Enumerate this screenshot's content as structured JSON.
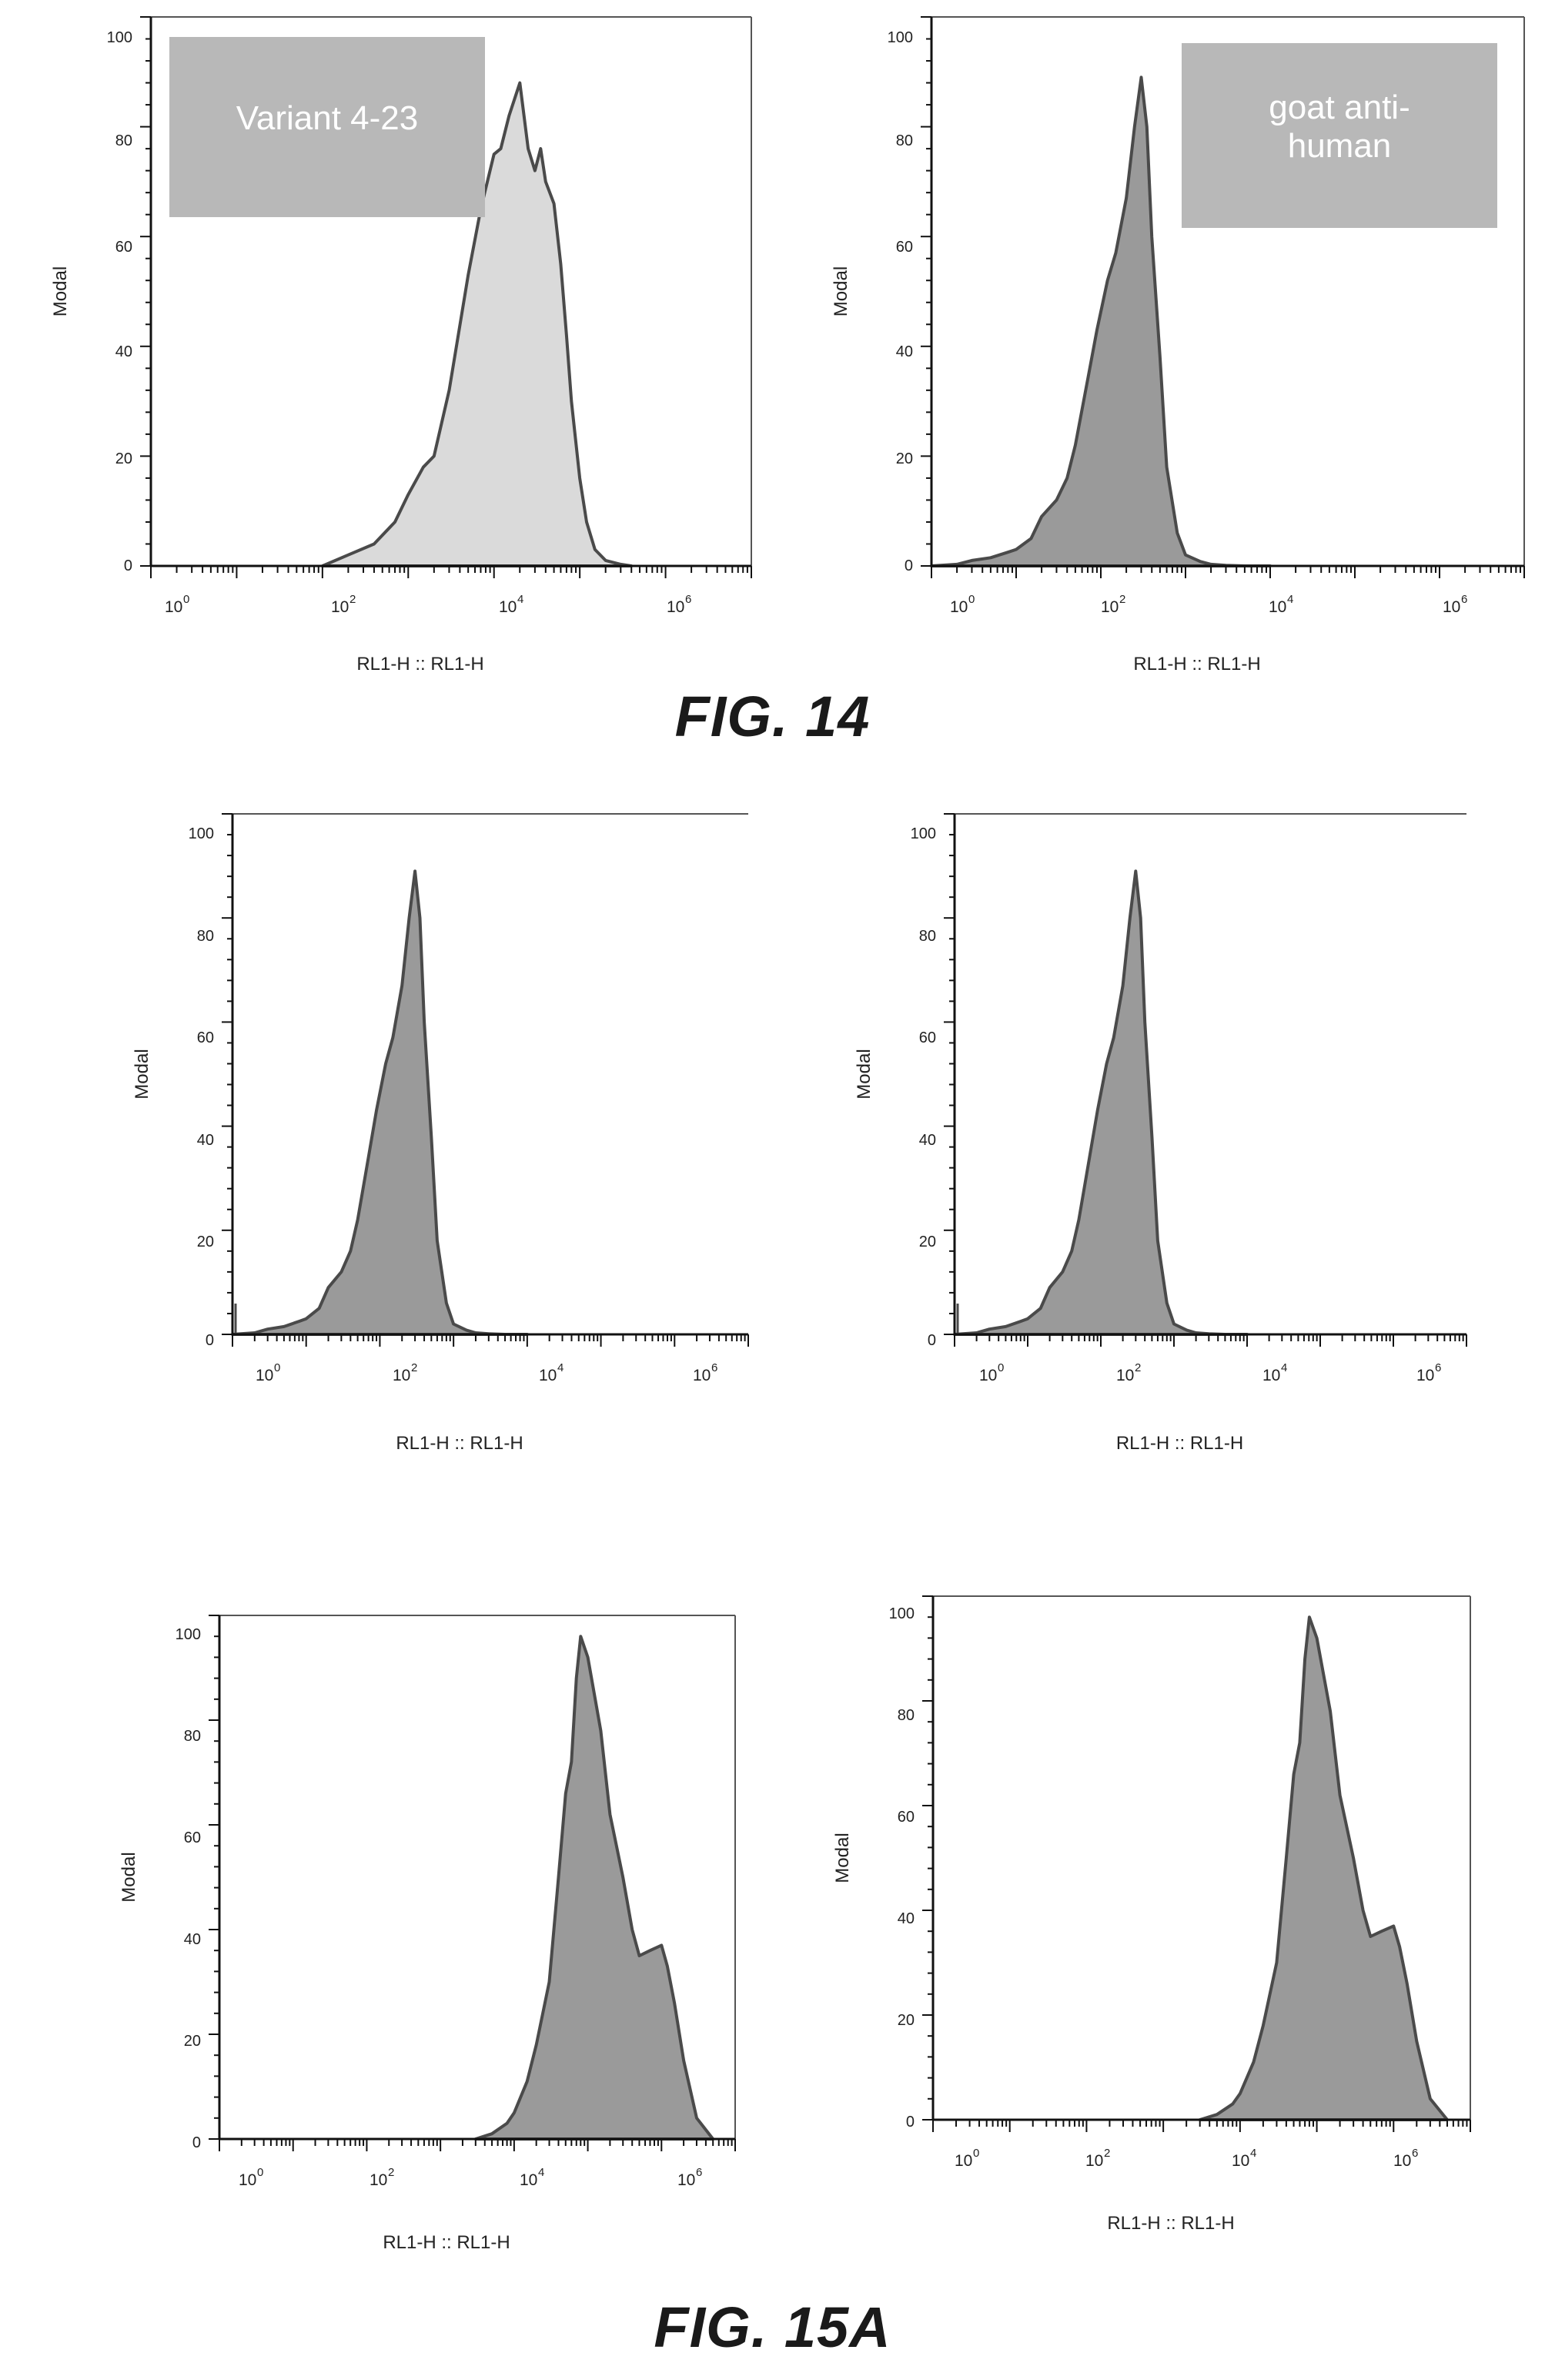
{
  "figures": [
    {
      "caption": "FIG. 14"
    },
    {
      "caption": "FIG. 15A"
    }
  ],
  "chart_data": [
    {
      "type": "area",
      "figure": "FIG. 14",
      "xscale": "log",
      "xlim": [
        1,
        10000000
      ],
      "ylim": [
        0,
        100
      ],
      "xlabel": "RL1-H :: RL1-H",
      "ylabel": "Modal",
      "xticks": [
        "0",
        "2",
        "4",
        "6"
      ],
      "yticks": [
        "0",
        "20",
        "40",
        "60",
        "80",
        "100"
      ],
      "label_box": "Variant 4-23",
      "fill": "#dadada",
      "series": [
        {
          "x": [
            100,
            200,
            400,
            700,
            1000,
            1500,
            2000,
            3000,
            5000,
            7000,
            10000,
            12000,
            15000,
            20000,
            25000,
            30000,
            35000,
            40000,
            50000,
            60000,
            70000,
            80000,
            100000,
            120000,
            150000,
            200000,
            300000,
            400000
          ],
          "y": [
            0,
            2,
            4,
            8,
            13,
            18,
            20,
            32,
            53,
            65,
            75,
            76,
            82,
            88,
            76,
            72,
            76,
            70,
            66,
            55,
            42,
            30,
            16,
            8,
            3,
            1,
            0.3,
            0
          ]
        }
      ]
    },
    {
      "type": "area",
      "figure": "FIG. 14",
      "xscale": "log",
      "xlim": [
        1,
        10000000
      ],
      "ylim": [
        0,
        100
      ],
      "xlabel": "RL1-H :: RL1-H",
      "ylabel": "Modal",
      "xticks": [
        "0",
        "2",
        "4",
        "6"
      ],
      "yticks": [
        "0",
        "20",
        "40",
        "60",
        "80",
        "100"
      ],
      "label_box": "goat anti-\nhuman",
      "fill": "#9a9a9a",
      "series": [
        {
          "x": [
            1,
            2,
            3,
            5,
            8,
            10,
            15,
            20,
            30,
            40,
            50,
            70,
            90,
            120,
            150,
            200,
            250,
            300,
            350,
            400,
            500,
            600,
            800,
            1000,
            1500,
            2000,
            3000,
            5000,
            10000
          ],
          "y": [
            0,
            0.3,
            1,
            1.5,
            2.5,
            3,
            5,
            9,
            12,
            16,
            22,
            34,
            43,
            52,
            57,
            67,
            80,
            89,
            80,
            60,
            38,
            18,
            6,
            2,
            0.8,
            0.3,
            0.1,
            0,
            0
          ]
        }
      ]
    },
    {
      "type": "area",
      "figure": "FIG. 15A",
      "xscale": "log",
      "xlim": [
        1,
        10000000
      ],
      "ylim": [
        0,
        100
      ],
      "xlabel": "RL1-H :: RL1-H",
      "ylabel": "Modal",
      "xticks": [
        "0",
        "2",
        "4",
        "6"
      ],
      "yticks": [
        "0",
        "20",
        "40",
        "60",
        "80",
        "100"
      ],
      "fill": "#9a9a9a",
      "series": [
        {
          "x": [
            1,
            2,
            3,
            5,
            8,
            10,
            15,
            20,
            30,
            40,
            50,
            70,
            90,
            120,
            150,
            200,
            250,
            300,
            350,
            400,
            500,
            600,
            800,
            1000,
            1500,
            2000,
            3000,
            5000,
            10000
          ],
          "y": [
            0,
            0.3,
            1,
            1.5,
            2.5,
            3,
            5,
            9,
            12,
            16,
            22,
            34,
            43,
            52,
            57,
            67,
            80,
            89,
            80,
            60,
            38,
            18,
            6,
            2,
            0.8,
            0.3,
            0.1,
            0,
            0
          ]
        }
      ]
    },
    {
      "type": "area",
      "figure": "FIG. 15A",
      "xscale": "log",
      "xlim": [
        1,
        10000000
      ],
      "ylim": [
        0,
        100
      ],
      "xlabel": "RL1-H :: RL1-H",
      "ylabel": "Modal",
      "xticks": [
        "0",
        "2",
        "4",
        "6"
      ],
      "yticks": [
        "0",
        "20",
        "40",
        "60",
        "80",
        "100"
      ],
      "fill": "#9a9a9a",
      "series": [
        {
          "x": [
            1,
            2,
            3,
            5,
            8,
            10,
            15,
            20,
            30,
            40,
            50,
            70,
            90,
            120,
            150,
            200,
            250,
            300,
            350,
            400,
            500,
            600,
            800,
            1000,
            1500,
            2000,
            3000,
            5000,
            10000
          ],
          "y": [
            0,
            0.3,
            1,
            1.5,
            2.5,
            3,
            5,
            9,
            12,
            16,
            22,
            34,
            43,
            52,
            57,
            67,
            80,
            89,
            80,
            60,
            38,
            18,
            6,
            2,
            0.8,
            0.3,
            0.1,
            0,
            0
          ]
        }
      ]
    },
    {
      "type": "area",
      "figure": "FIG. 15A",
      "xscale": "log",
      "xlim": [
        1,
        10000000
      ],
      "ylim": [
        0,
        100
      ],
      "xlabel": "RL1-H :: RL1-H",
      "ylabel": "Modal",
      "xticks": [
        "0",
        "2",
        "4",
        "6"
      ],
      "yticks": [
        "0",
        "20",
        "40",
        "60",
        "80",
        "100"
      ],
      "fill": "#9a9a9a",
      "series": [
        {
          "x": [
            3000,
            5000,
            8000,
            10000,
            15000,
            20000,
            30000,
            40000,
            50000,
            60000,
            70000,
            80000,
            100000,
            150000,
            200000,
            300000,
            400000,
            500000,
            700000,
            1000000,
            1200000,
            1500000,
            2000000,
            3000000,
            5000000
          ],
          "y": [
            0,
            1,
            3,
            5,
            11,
            18,
            30,
            50,
            66,
            72,
            88,
            96,
            92,
            78,
            62,
            50,
            40,
            35,
            36,
            37,
            33,
            26,
            15,
            4,
            0
          ]
        }
      ]
    },
    {
      "type": "area",
      "figure": "FIG. 15A",
      "xscale": "log",
      "xlim": [
        1,
        10000000
      ],
      "ylim": [
        0,
        100
      ],
      "xlabel": "RL1-H :: RL1-H",
      "ylabel": "Modal",
      "xticks": [
        "0",
        "2",
        "4",
        "6"
      ],
      "yticks": [
        "0",
        "20",
        "40",
        "60",
        "80",
        "100"
      ],
      "fill": "#9a9a9a",
      "series": [
        {
          "x": [
            3000,
            5000,
            8000,
            10000,
            15000,
            20000,
            30000,
            40000,
            50000,
            60000,
            70000,
            80000,
            100000,
            150000,
            200000,
            300000,
            400000,
            500000,
            700000,
            1000000,
            1200000,
            1500000,
            2000000,
            3000000,
            5000000
          ],
          "y": [
            0,
            1,
            3,
            5,
            11,
            18,
            30,
            50,
            66,
            72,
            88,
            96,
            92,
            78,
            62,
            50,
            40,
            35,
            36,
            37,
            33,
            26,
            15,
            4,
            0
          ]
        }
      ]
    }
  ]
}
